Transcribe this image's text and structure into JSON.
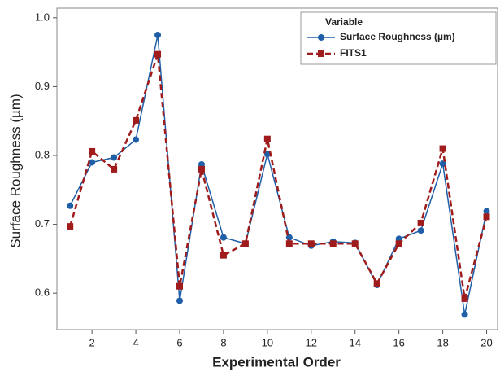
{
  "chart_data": {
    "type": "line",
    "xlabel": "Experimental Order",
    "ylabel": "Surface Roughness (µm)",
    "legend_title": "Variable",
    "legend": "upper right",
    "grid": false,
    "x": [
      1,
      2,
      3,
      4,
      5,
      6,
      7,
      8,
      9,
      10,
      11,
      12,
      13,
      14,
      15,
      16,
      17,
      18,
      19,
      20
    ],
    "series": [
      {
        "name": "Surface Roughness (µm)",
        "color": "#1f5fa8",
        "linestyle": "solid",
        "marker": "circle",
        "values": [
          0.727,
          0.79,
          0.797,
          0.823,
          0.975,
          0.589,
          0.787,
          0.681,
          0.672,
          0.802,
          0.681,
          0.669,
          0.675,
          0.673,
          0.612,
          0.679,
          0.691,
          0.788,
          0.569,
          0.719
        ]
      },
      {
        "name": "FITS1",
        "color": "#a01c1c",
        "linestyle": "dashed",
        "marker": "square",
        "values": [
          0.697,
          0.806,
          0.78,
          0.851,
          0.947,
          0.61,
          0.78,
          0.655,
          0.672,
          0.824,
          0.672,
          0.672,
          0.672,
          0.672,
          0.614,
          0.672,
          0.702,
          0.81,
          0.592,
          0.711
        ]
      }
    ],
    "xlim": [
      0.4,
      20.5
    ],
    "ylim": [
      0.547,
      1.014
    ],
    "xticks": [
      2,
      4,
      6,
      8,
      10,
      12,
      14,
      16,
      18,
      20
    ],
    "yticks": [
      0.6,
      0.7,
      0.8,
      0.9,
      {
        "value": 1,
        "label": "1.0"
      }
    ]
  }
}
